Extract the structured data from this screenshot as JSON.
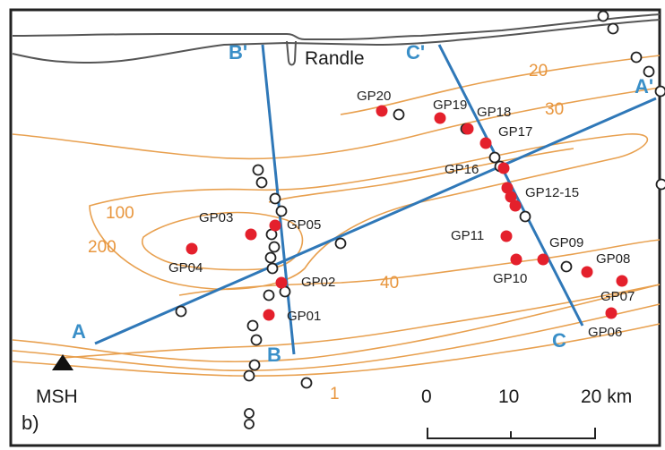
{
  "map": {
    "panel_label": "b)",
    "town_label": "Randle",
    "volcano_label": "MSH",
    "colors": {
      "contour": "#e8a04f",
      "contour_label": "#e8963e",
      "profile": "#2f78b8",
      "profile_label": "#3a8fc8",
      "station_fill": "#e4202c",
      "river": "#555555",
      "frame": "#222222"
    },
    "contour_labels": [
      "20",
      "30",
      "100",
      "200",
      "40",
      "1"
    ],
    "profiles": [
      {
        "start_label": "A",
        "end_label": "A'"
      },
      {
        "start_label": "B",
        "end_label": "B'"
      },
      {
        "start_label": "C",
        "end_label": "C'"
      }
    ],
    "stations": [
      "GP20",
      "GP19",
      "GP18",
      "GP17",
      "GP16",
      "GP12-15",
      "GP11",
      "GP09",
      "GP10",
      "GP08",
      "GP07",
      "GP06",
      "GP03",
      "GP05",
      "GP04",
      "GP02",
      "GP01"
    ],
    "scale_bar": {
      "ticks": [
        "0",
        "10",
        "20 km"
      ]
    }
  }
}
